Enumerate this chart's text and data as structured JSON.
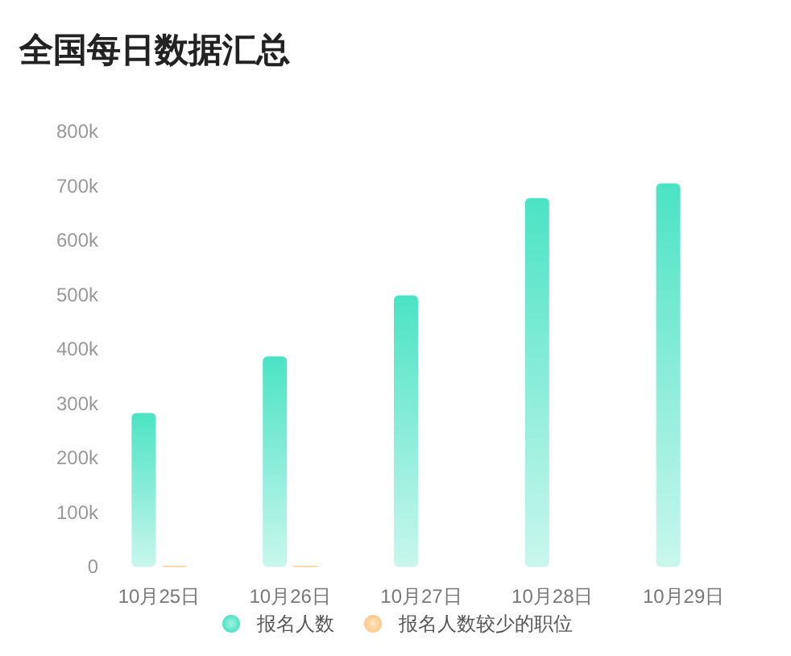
{
  "chart_data": {
    "type": "bar",
    "title": "全国每日数据汇总",
    "categories": [
      "10月25日",
      "10月26日",
      "10月27日",
      "10月28日",
      "10月29日"
    ],
    "series": [
      {
        "name": "报名人数",
        "color": "#4be3c4",
        "values": [
          283000,
          387000,
          499000,
          678000,
          705000
        ]
      },
      {
        "name": "报名人数较少的职位",
        "color": "#ffc98a",
        "values": [
          2000,
          2000,
          null,
          null,
          null
        ]
      }
    ],
    "ylim": [
      0,
      800000
    ],
    "yticks": [
      {
        "value": 0,
        "label": "0"
      },
      {
        "value": 100000,
        "label": "100k"
      },
      {
        "value": 200000,
        "label": "200k"
      },
      {
        "value": 300000,
        "label": "300k"
      },
      {
        "value": 400000,
        "label": "400k"
      },
      {
        "value": 500000,
        "label": "500k"
      },
      {
        "value": 600000,
        "label": "600k"
      },
      {
        "value": 700000,
        "label": "700k"
      },
      {
        "value": 800000,
        "label": "800k"
      }
    ],
    "grid": false,
    "legend": "bottom"
  }
}
